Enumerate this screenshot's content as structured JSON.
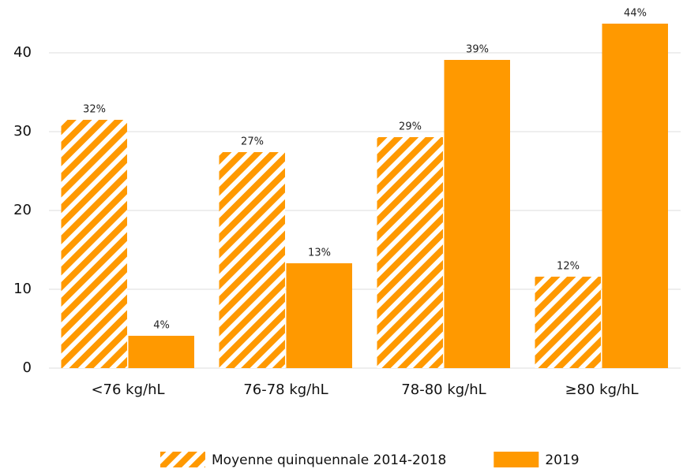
{
  "chart_data": {
    "type": "bar",
    "categories": [
      "<76 kg/hL",
      "76-78 kg/hL",
      "78-80 kg/hL",
      "≥80 kg/hL"
    ],
    "series": [
      {
        "name": "Moyenne quinquennale 2014-2018",
        "color": "#ff9900",
        "pattern": "hatch",
        "values": [
          31.5,
          27.4,
          29.3,
          11.6
        ],
        "value_labels": [
          "32%",
          "27%",
          "29%",
          "12%"
        ]
      },
      {
        "name": "2019",
        "color": "#ff9900",
        "pattern": "solid",
        "values": [
          4.1,
          13.3,
          39.1,
          43.7
        ],
        "value_labels": [
          "4%",
          "13%",
          "39%",
          "44%"
        ]
      }
    ],
    "ylim": [
      0,
      44.7
    ],
    "yticks": [
      0,
      10,
      20,
      30,
      40
    ],
    "grid": true,
    "legend": "bottom"
  }
}
